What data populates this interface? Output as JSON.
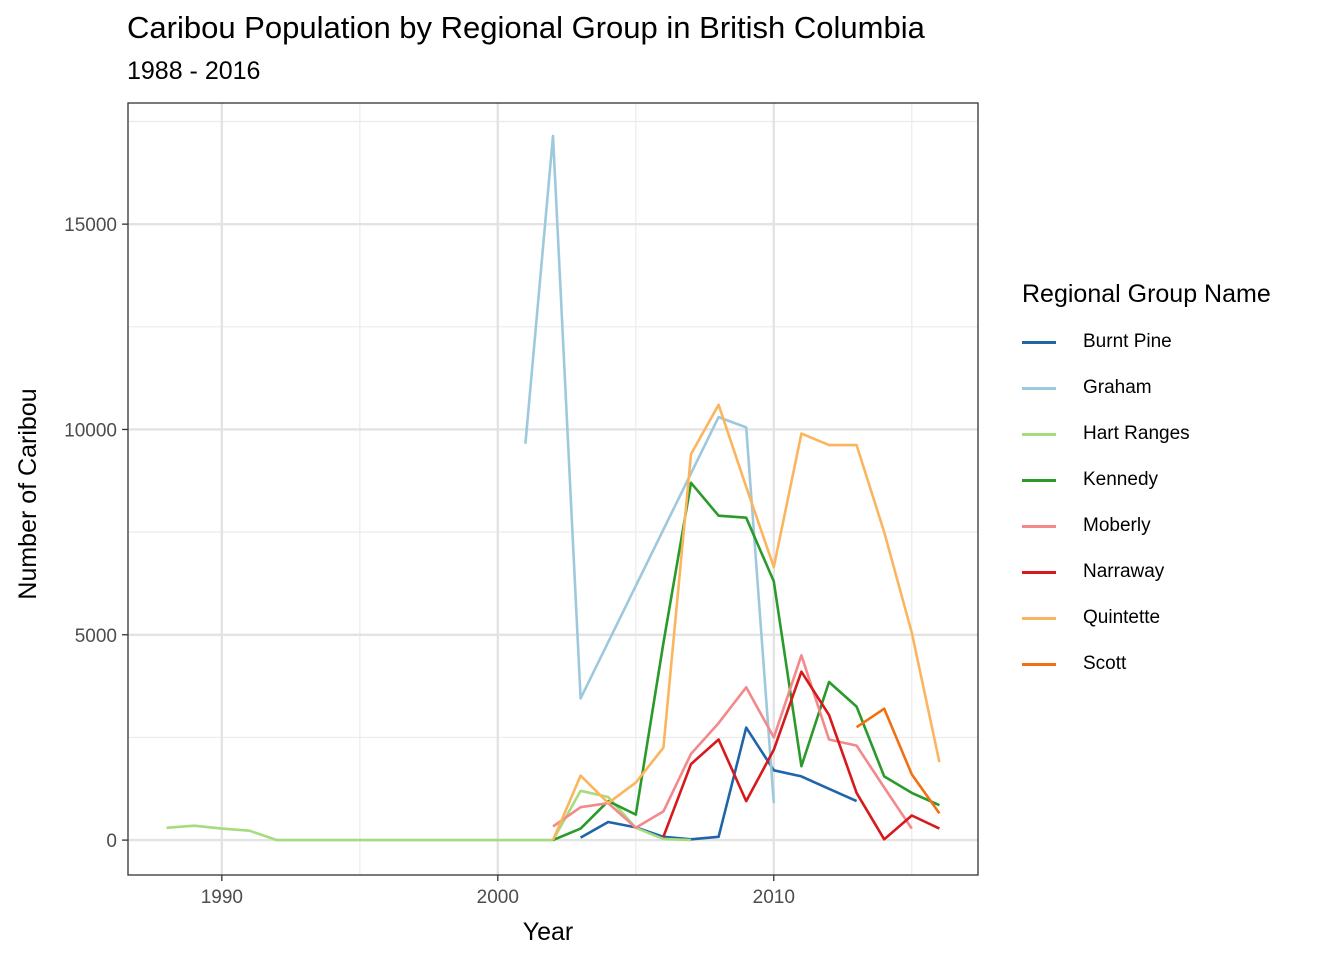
{
  "chart_data": {
    "type": "line",
    "title": "Caribou Population by Regional Group in British Columbia",
    "subtitle": "1988 - 2016",
    "xlabel": "Year",
    "ylabel": "Number of Caribou",
    "xlim": [
      1986.6,
      2017.4
    ],
    "ylim": [
      -850,
      17950
    ],
    "x_ticks": [
      1990,
      2000,
      2010
    ],
    "x_tick_labels": [
      "1990",
      "2000",
      "2010"
    ],
    "y_ticks": [
      0,
      5000,
      10000,
      15000
    ],
    "y_tick_labels": [
      "0",
      "5000",
      "10000",
      "15000"
    ],
    "grid": true,
    "legend_title": "Regional Group Name",
    "legend_position": "right",
    "series": [
      {
        "name": "Burnt Pine",
        "color": "#1f65a8",
        "x": [
          2003,
          2004,
          2005,
          2006,
          2007,
          2008,
          2009,
          2010,
          2011,
          2012,
          2013
        ],
        "y": [
          60,
          440,
          310,
          80,
          20,
          80,
          2740,
          1700,
          1550,
          1250,
          950
        ]
      },
      {
        "name": "Graham",
        "color": "#9ec9dd",
        "x": [
          2001,
          2002,
          2003,
          2008,
          2009,
          2010
        ],
        "y": [
          9650,
          17150,
          3450,
          10300,
          10050,
          900
        ]
      },
      {
        "name": "Hart Ranges",
        "color": "#a6db7e",
        "x": [
          1988,
          1989,
          1990,
          1991,
          1992,
          1993,
          1994,
          1995,
          1996,
          1997,
          1998,
          1999,
          2000,
          2001,
          2002,
          2003,
          2004,
          2005,
          2006,
          2007
        ],
        "y": [
          300,
          350,
          280,
          230,
          0,
          0,
          0,
          0,
          0,
          0,
          0,
          0,
          0,
          0,
          0,
          1200,
          1050,
          300,
          30,
          0
        ]
      },
      {
        "name": "Kennedy",
        "color": "#2a9a2a",
        "x": [
          2002,
          2003,
          2004,
          2005,
          2006,
          2007,
          2008,
          2009,
          2010,
          2011,
          2012,
          2013,
          2014,
          2015,
          2016
        ],
        "y": [
          0,
          280,
          950,
          620,
          4800,
          8700,
          7900,
          7850,
          6300,
          1800,
          3850,
          3250,
          1550,
          1150,
          850
        ]
      },
      {
        "name": "Moberly",
        "color": "#f4898b",
        "x": [
          2002,
          2003,
          2004,
          2005,
          2006,
          2007,
          2008,
          2009,
          2010,
          2011,
          2012,
          2013,
          2014,
          2015
        ],
        "y": [
          330,
          800,
          900,
          300,
          700,
          2100,
          2850,
          3720,
          2500,
          4500,
          2450,
          2300,
          1280,
          280
        ]
      },
      {
        "name": "Narraway",
        "color": "#d7191c",
        "x": [
          2006,
          2007,
          2008,
          2009,
          2010,
          2011,
          2012,
          2013,
          2014,
          2015,
          2016
        ],
        "y": [
          80,
          1850,
          2450,
          950,
          2200,
          4100,
          3050,
          1150,
          20,
          600,
          280
        ]
      },
      {
        "name": "Quintette",
        "color": "#fbb55e",
        "x": [
          2002,
          2003,
          2004,
          2005,
          2006,
          2007,
          2008,
          2009,
          2010,
          2011,
          2012,
          2013,
          2014,
          2015,
          2016
        ],
        "y": [
          0,
          1570,
          900,
          1400,
          2250,
          9400,
          10600,
          8600,
          6650,
          9900,
          9620,
          9620,
          7500,
          5050,
          1900
        ]
      },
      {
        "name": "Scott",
        "color": "#f17011",
        "x": [
          2013,
          2014,
          2015,
          2016
        ],
        "y": [
          2750,
          3200,
          1600,
          650
        ]
      }
    ]
  }
}
